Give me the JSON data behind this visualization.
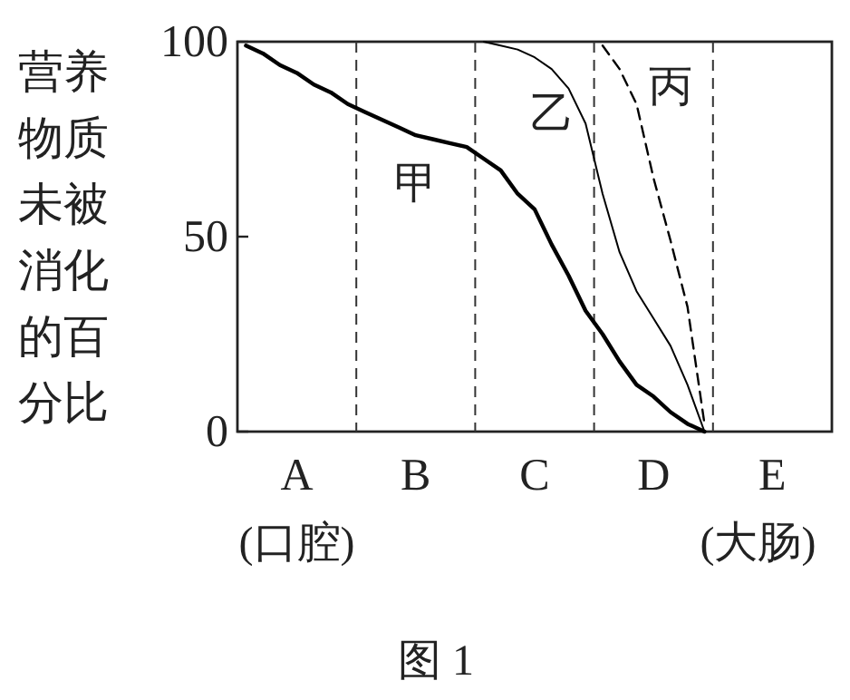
{
  "chart_data": {
    "type": "line",
    "ylabel": "营养物质未被消化的百分比",
    "categories": [
      null,
      null,
      null,
      "A",
      null,
      null,
      null,
      null,
      null,
      null,
      "B",
      null,
      null,
      null,
      null,
      null,
      null,
      "C",
      null,
      null,
      null,
      null,
      null,
      null,
      "D",
      null,
      null,
      null,
      null,
      null,
      null,
      "E",
      null,
      null,
      null
    ],
    "ylim": [
      0,
      100
    ],
    "yticks": [
      0,
      50,
      100
    ],
    "series": [
      {
        "name": "甲",
        "color": "#000000",
        "values": [
          99,
          97,
          94,
          92,
          89,
          87,
          84,
          82,
          80,
          78,
          76,
          75,
          74,
          73,
          70,
          67,
          61,
          57,
          48,
          40,
          31,
          25,
          18,
          12,
          9,
          5,
          2,
          0,
          null,
          null,
          null,
          null,
          null,
          null,
          null
        ]
      },
      {
        "name": "乙",
        "color": "#000000",
        "values": [
          null,
          null,
          null,
          null,
          null,
          null,
          null,
          null,
          null,
          null,
          null,
          null,
          null,
          null,
          100,
          99,
          98,
          96,
          93,
          88,
          79,
          61,
          46,
          36,
          29,
          22,
          12,
          0,
          null,
          null,
          null,
          null,
          null,
          null,
          null
        ]
      },
      {
        "name": "丙",
        "color": "#000000",
        "line_style": "dashed",
        "values": [
          null,
          null,
          null,
          null,
          null,
          null,
          null,
          null,
          null,
          null,
          null,
          null,
          null,
          null,
          null,
          null,
          null,
          null,
          null,
          null,
          null,
          99,
          93,
          84,
          65,
          49,
          32,
          2,
          null,
          null,
          null,
          null,
          null,
          null,
          null
        ]
      }
    ],
    "annotations": [
      "(口腔)",
      "(大肠)",
      "图 1"
    ],
    "grid": "x"
  }
}
